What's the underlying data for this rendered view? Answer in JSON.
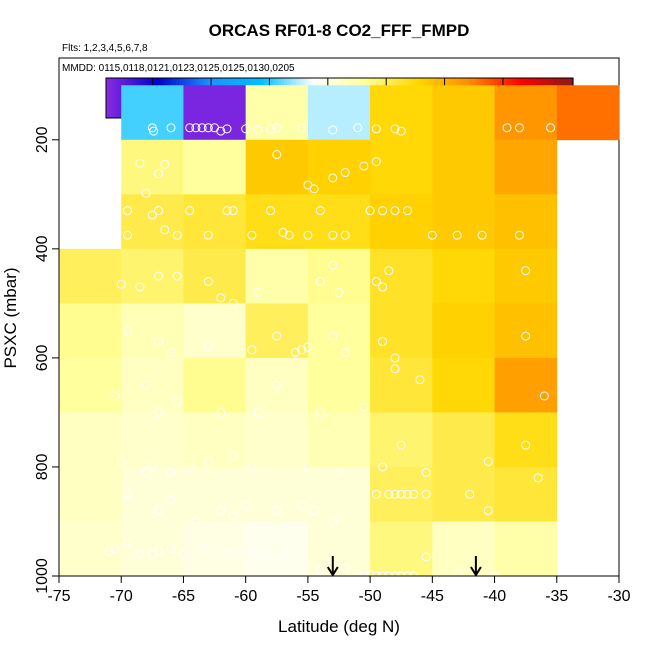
{
  "chart_data": {
    "type": "heatmap",
    "title": "ORCAS RF01-8 CO2_FFF_FMPD",
    "flights_note": "Flts: 1,2,3,4,5,6,7,8",
    "dates_note": "MMDD: 0115,0118,0121,0123,0125,0125,0130,0205",
    "xlabel": "Latitude (deg N)",
    "ylabel": "PSXC (mbar)",
    "xlim": [
      -75,
      -30
    ],
    "ylim": [
      1000,
      50
    ],
    "x_ticks": [
      -75,
      -70,
      -65,
      -60,
      -55,
      -50,
      -45,
      -40,
      -35,
      -30
    ],
    "y_ticks": [
      200,
      400,
      600,
      800,
      1000
    ],
    "colorbar": {
      "range": [
        184.1,
        188.1
      ],
      "ticks": [
        184.5,
        185.0,
        185.5,
        186.0,
        186.5,
        187.0,
        187.5
      ],
      "colors": [
        "#8a2be2",
        "#0000cd",
        "#1e90ff",
        "#00bfff",
        "#ffffff",
        "#ffff99",
        "#ffd700",
        "#ff8c00",
        "#ff0000",
        "#8b1a1a"
      ]
    },
    "lat_bin_edges": [
      -75,
      -70,
      -65,
      -60,
      -55,
      -50,
      -45,
      -40,
      -35,
      -30
    ],
    "pressure_bin_edges": [
      100,
      200,
      300,
      400,
      500,
      600,
      700,
      800,
      900,
      1000
    ],
    "grid_values": [
      [
        null,
        185.55,
        184.15,
        186.25,
        185.75,
        186.75,
        186.85,
        187.15,
        187.3
      ],
      [
        null,
        186.4,
        186.3,
        186.85,
        186.8,
        186.75,
        186.85,
        187.05,
        null
      ],
      [
        null,
        186.55,
        186.6,
        186.7,
        186.7,
        186.8,
        186.85,
        186.9,
        null
      ],
      [
        186.5,
        186.45,
        186.55,
        186.25,
        186.35,
        186.65,
        186.75,
        186.85,
        null
      ],
      [
        186.35,
        186.2,
        186.1,
        186.5,
        186.3,
        186.65,
        186.8,
        186.9,
        null
      ],
      [
        186.3,
        186.15,
        186.35,
        186.15,
        186.3,
        186.6,
        186.75,
        187.1,
        null
      ],
      [
        186.15,
        186.1,
        186.15,
        186.1,
        186.2,
        186.45,
        186.55,
        186.7,
        null
      ],
      [
        186.15,
        186.05,
        186.05,
        186.05,
        186.05,
        186.5,
        186.55,
        186.6,
        null
      ],
      [
        186.1,
        186.05,
        186.0,
        185.95,
        186.05,
        186.4,
        186.15,
        186.25,
        null
      ]
    ],
    "sample_points": [
      [
        -67.5,
        178
      ],
      [
        -67.4,
        184
      ],
      [
        -66.0,
        178
      ],
      [
        -64.5,
        178
      ],
      [
        -64.0,
        178
      ],
      [
        -63.5,
        178
      ],
      [
        -63.0,
        178
      ],
      [
        -62.5,
        178
      ],
      [
        -62.0,
        184
      ],
      [
        -61.5,
        180
      ],
      [
        -60.0,
        180
      ],
      [
        -59.0,
        182
      ],
      [
        -58.0,
        180
      ],
      [
        -57.5,
        178
      ],
      [
        -55.5,
        178
      ],
      [
        -53.0,
        182
      ],
      [
        -51.0,
        178
      ],
      [
        -49.5,
        180
      ],
      [
        -48.0,
        180
      ],
      [
        -47.5,
        184
      ],
      [
        -39.0,
        178
      ],
      [
        -38.0,
        178
      ],
      [
        -35.5,
        178
      ],
      [
        -68.5,
        243
      ],
      [
        -67.0,
        262
      ],
      [
        -66.5,
        245
      ],
      [
        -57.5,
        227
      ],
      [
        -55.0,
        283
      ],
      [
        -54.5,
        290
      ],
      [
        -53.0,
        270
      ],
      [
        -52.0,
        260
      ],
      [
        -50.5,
        248
      ],
      [
        -49.5,
        240
      ],
      [
        -69.5,
        330
      ],
      [
        -69.5,
        375
      ],
      [
        -68.0,
        298
      ],
      [
        -67.5,
        338
      ],
      [
        -67.0,
        330
      ],
      [
        -66.5,
        365
      ],
      [
        -65.5,
        375
      ],
      [
        -64.5,
        330
      ],
      [
        -63.0,
        375
      ],
      [
        -61.5,
        330
      ],
      [
        -61.0,
        330
      ],
      [
        -59.5,
        375
      ],
      [
        -58.0,
        330
      ],
      [
        -57.0,
        370
      ],
      [
        -56.5,
        375
      ],
      [
        -55.0,
        375
      ],
      [
        -54.0,
        330
      ],
      [
        -53.0,
        375
      ],
      [
        -52.0,
        375
      ],
      [
        -50.0,
        330
      ],
      [
        -49.0,
        330
      ],
      [
        -48.0,
        330
      ],
      [
        -47.0,
        330
      ],
      [
        -45.0,
        375
      ],
      [
        -43.0,
        375
      ],
      [
        -41.0,
        375
      ],
      [
        -38.0,
        375
      ],
      [
        -70.0,
        465
      ],
      [
        -68.5,
        470
      ],
      [
        -67.0,
        450
      ],
      [
        -65.5,
        450
      ],
      [
        -63.0,
        460
      ],
      [
        -62.0,
        490
      ],
      [
        -61.0,
        500
      ],
      [
        -59.0,
        480
      ],
      [
        -54.0,
        460
      ],
      [
        -53.0,
        430
      ],
      [
        -52.5,
        480
      ],
      [
        -49.5,
        460
      ],
      [
        -49.0,
        470
      ],
      [
        -48.5,
        440
      ],
      [
        -37.5,
        440
      ],
      [
        -69.5,
        550
      ],
      [
        -67.0,
        570
      ],
      [
        -66.0,
        590
      ],
      [
        -63.0,
        580
      ],
      [
        -59.5,
        585
      ],
      [
        -57.5,
        560
      ],
      [
        -56.0,
        590
      ],
      [
        -55.5,
        585
      ],
      [
        -55.0,
        580
      ],
      [
        -53.0,
        560
      ],
      [
        -52.0,
        590
      ],
      [
        -49.0,
        570
      ],
      [
        -48.0,
        600
      ],
      [
        -37.5,
        560
      ],
      [
        -70.5,
        670
      ],
      [
        -68.0,
        650
      ],
      [
        -67.0,
        700
      ],
      [
        -65.5,
        680
      ],
      [
        -62.0,
        700
      ],
      [
        -59.0,
        700
      ],
      [
        -57.5,
        650
      ],
      [
        -54.0,
        700
      ],
      [
        -50.5,
        690
      ],
      [
        -48.0,
        620
      ],
      [
        -46.0,
        640
      ],
      [
        -36.0,
        670
      ],
      [
        -70.0,
        790
      ],
      [
        -68.0,
        810
      ],
      [
        -67.5,
        800
      ],
      [
        -66.0,
        810
      ],
      [
        -64.5,
        800
      ],
      [
        -63.0,
        790
      ],
      [
        -61.0,
        780
      ],
      [
        -59.5,
        800
      ],
      [
        -55.0,
        800
      ],
      [
        -52.5,
        810
      ],
      [
        -49.0,
        800
      ],
      [
        -47.5,
        760
      ],
      [
        -45.5,
        810
      ],
      [
        -40.5,
        790
      ],
      [
        -37.5,
        760
      ],
      [
        -36.5,
        820
      ],
      [
        -69.5,
        850
      ],
      [
        -67.0,
        880
      ],
      [
        -66.0,
        860
      ],
      [
        -64.0,
        900
      ],
      [
        -62.0,
        880
      ],
      [
        -61.0,
        890
      ],
      [
        -60.0,
        870
      ],
      [
        -57.5,
        880
      ],
      [
        -55.5,
        870
      ],
      [
        -54.5,
        880
      ],
      [
        -53.0,
        900
      ],
      [
        -49.5,
        850
      ],
      [
        -48.5,
        850
      ],
      [
        -48.0,
        850
      ],
      [
        -47.5,
        850
      ],
      [
        -47.0,
        850
      ],
      [
        -46.5,
        850
      ],
      [
        -45.5,
        850
      ],
      [
        -42.0,
        850
      ],
      [
        -40.5,
        880
      ],
      [
        -71.0,
        955
      ],
      [
        -70.5,
        950
      ],
      [
        -69.5,
        940
      ],
      [
        -68.5,
        960
      ],
      [
        -67.5,
        960
      ],
      [
        -67.0,
        955
      ],
      [
        -66.0,
        950
      ],
      [
        -65.0,
        960
      ],
      [
        -63.0,
        945
      ],
      [
        -61.5,
        960
      ],
      [
        -60.5,
        955
      ],
      [
        -59.5,
        955
      ],
      [
        -58.5,
        960
      ],
      [
        -57.0,
        965
      ],
      [
        -55.5,
        970
      ],
      [
        -54.0,
        990
      ],
      [
        -52.0,
        985
      ],
      [
        -50.5,
        1000
      ],
      [
        -50.0,
        998
      ],
      [
        -49.5,
        1000
      ],
      [
        -49.0,
        1000
      ],
      [
        -48.5,
        1000
      ],
      [
        -48.0,
        1000
      ],
      [
        -47.5,
        1000
      ],
      [
        -47.0,
        1000
      ],
      [
        -46.5,
        1000
      ],
      [
        -45.5,
        965
      ],
      [
        -43.0,
        995
      ],
      [
        -40.0,
        1000
      ]
    ],
    "arrows_at_lat": [
      -53,
      -41.5
    ]
  }
}
